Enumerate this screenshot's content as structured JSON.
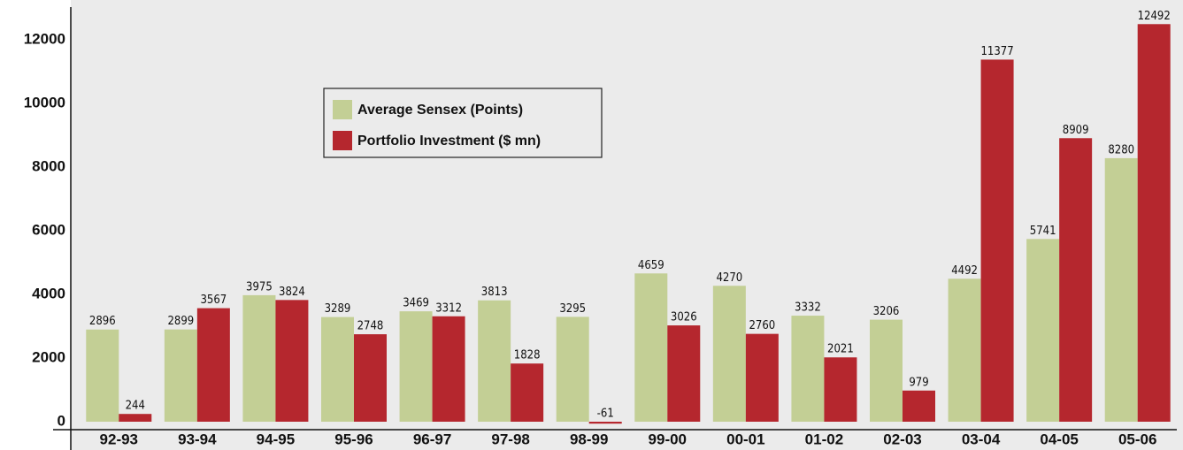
{
  "chart_data": {
    "type": "bar",
    "categories": [
      "92-93",
      "93-94",
      "94-95",
      "95-96",
      "96-97",
      "97-98",
      "98-99",
      "99-00",
      "00-01",
      "01-02",
      "02-03",
      "03-04",
      "04-05",
      "05-06"
    ],
    "series": [
      {
        "name": "Average Sensex (Points)",
        "color": "#c3cf95",
        "values": [
          2896,
          2899,
          3975,
          3289,
          3469,
          3813,
          3295,
          4659,
          4270,
          3332,
          3206,
          4492,
          5741,
          8280
        ]
      },
      {
        "name": "Portfolio Investment ($ mn)",
        "color": "#b5272e",
        "values": [
          244,
          3567,
          3824,
          2748,
          3312,
          1828,
          -61,
          3026,
          2760,
          2021,
          979,
          11377,
          8909,
          12492
        ]
      }
    ],
    "ylim": [
      -250,
      13000
    ],
    "yticks": [
      0,
      2000,
      4000,
      6000,
      8000,
      10000,
      12000
    ],
    "grid": false,
    "legend": "upper left"
  }
}
